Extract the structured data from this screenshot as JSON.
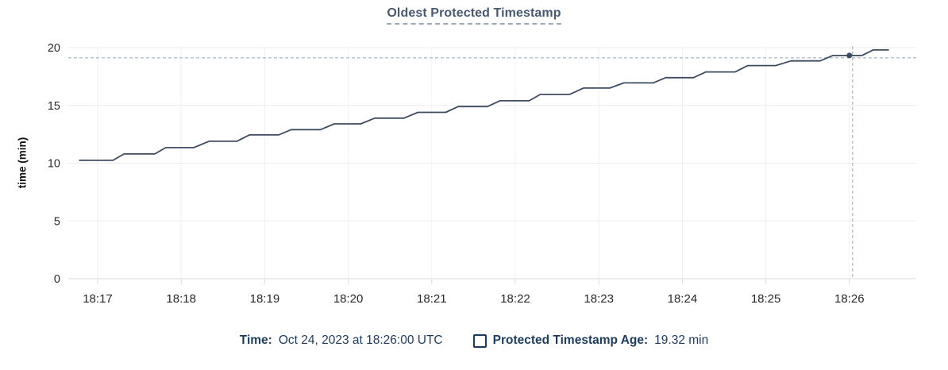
{
  "header": {
    "title": "Oldest Protected Timestamp"
  },
  "colors": {
    "title": "#475872",
    "legend_text": "#1b3b5f",
    "line": "#3d4c61",
    "crosshair": "#a4b9c6",
    "grid": "#ececec"
  },
  "legend": {
    "time_label": "Time:",
    "time_value": "Oct 24, 2023 at 18:26:00 UTC",
    "series_label": "Protected Timestamp Age:",
    "series_value": "19.32 min"
  },
  "chart_data": {
    "type": "line",
    "title": "Oldest Protected Timestamp",
    "xlabel": "",
    "ylabel": "time (min)",
    "grid": true,
    "ylim": [
      0,
      20
    ],
    "y_ticks": [
      0,
      5,
      10,
      15,
      20
    ],
    "x_tick_labels": [
      "18:17",
      "18:18",
      "18:19",
      "18:20",
      "18:21",
      "18:22",
      "18:23",
      "18:24",
      "18:25",
      "18:26"
    ],
    "x_tick_interval_seconds": 60,
    "series": [
      {
        "name": "Protected Timestamp Age",
        "unit": "min",
        "points": [
          [
            -13,
            10.25
          ],
          [
            11,
            10.25
          ],
          [
            19,
            10.8
          ],
          [
            41,
            10.8
          ],
          [
            49,
            11.35
          ],
          [
            69,
            11.35
          ],
          [
            80,
            11.9
          ],
          [
            100,
            11.9
          ],
          [
            109,
            12.45
          ],
          [
            130,
            12.45
          ],
          [
            139,
            12.9
          ],
          [
            160,
            12.9
          ],
          [
            170,
            13.4
          ],
          [
            189,
            13.4
          ],
          [
            199,
            13.9
          ],
          [
            220,
            13.9
          ],
          [
            230,
            14.4
          ],
          [
            250,
            14.4
          ],
          [
            259,
            14.9
          ],
          [
            280,
            14.9
          ],
          [
            289,
            15.4
          ],
          [
            310,
            15.4
          ],
          [
            318,
            15.95
          ],
          [
            339,
            15.95
          ],
          [
            349,
            16.5
          ],
          [
            368,
            16.5
          ],
          [
            378,
            16.95
          ],
          [
            399,
            16.95
          ],
          [
            408,
            17.4
          ],
          [
            428,
            17.4
          ],
          [
            437,
            17.9
          ],
          [
            458,
            17.9
          ],
          [
            467,
            18.45
          ],
          [
            487,
            18.45
          ],
          [
            498,
            18.85
          ],
          [
            519,
            18.85
          ],
          [
            528,
            19.32
          ],
          [
            549,
            19.32
          ],
          [
            557,
            19.8
          ],
          [
            568,
            19.8
          ]
        ]
      }
    ],
    "crosshair": {
      "t_seconds": 540,
      "time": "18:26:00",
      "value": 19.32
    }
  }
}
